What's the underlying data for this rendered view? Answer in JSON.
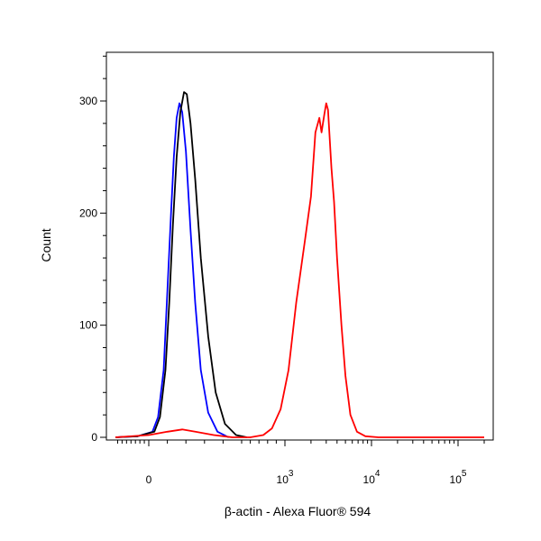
{
  "chart_data": {
    "type": "line",
    "xlabel": "β-actin - Alexa Fluor® 594",
    "ylabel": "Count",
    "x_scale": "biexponential",
    "ylim": [
      0,
      340
    ],
    "y_ticks": [
      {
        "value": 0,
        "label": "0"
      },
      {
        "value": 100,
        "label": "100"
      },
      {
        "value": 200,
        "label": "200"
      },
      {
        "value": 300,
        "label": "300"
      }
    ],
    "x_ticks": [
      {
        "value": 0,
        "base": "0",
        "exp": ""
      },
      {
        "value": 1000,
        "base": "10",
        "exp": "3"
      },
      {
        "value": 10000,
        "base": "10",
        "exp": "4"
      },
      {
        "value": 100000,
        "base": "10",
        "exp": "5"
      }
    ],
    "grid": false,
    "series": [
      {
        "color": "#0000ff",
        "points": [
          [
            -150,
            0
          ],
          [
            -50,
            1
          ],
          [
            20,
            5
          ],
          [
            50,
            18
          ],
          [
            80,
            60
          ],
          [
            100,
            130
          ],
          [
            120,
            200
          ],
          [
            135,
            250
          ],
          [
            150,
            285
          ],
          [
            165,
            298
          ],
          [
            180,
            290
          ],
          [
            200,
            255
          ],
          [
            225,
            185
          ],
          [
            250,
            120
          ],
          [
            280,
            60
          ],
          [
            320,
            22
          ],
          [
            370,
            5
          ],
          [
            430,
            0
          ]
        ]
      },
      {
        "color": "#000000",
        "points": [
          [
            -150,
            0
          ],
          [
            -50,
            1
          ],
          [
            30,
            5
          ],
          [
            60,
            18
          ],
          [
            90,
            60
          ],
          [
            110,
            120
          ],
          [
            130,
            190
          ],
          [
            150,
            250
          ],
          [
            170,
            290
          ],
          [
            190,
            308
          ],
          [
            205,
            306
          ],
          [
            225,
            280
          ],
          [
            250,
            230
          ],
          [
            280,
            160
          ],
          [
            320,
            90
          ],
          [
            360,
            40
          ],
          [
            410,
            12
          ],
          [
            470,
            2
          ],
          [
            560,
            0
          ]
        ]
      },
      {
        "color": "#ff0000",
        "points": [
          [
            -150,
            0
          ],
          [
            0,
            2
          ],
          [
            100,
            5
          ],
          [
            180,
            7
          ],
          [
            250,
            5
          ],
          [
            350,
            2
          ],
          [
            450,
            0
          ],
          [
            600,
            0
          ],
          [
            750,
            2
          ],
          [
            850,
            8
          ],
          [
            950,
            25
          ],
          [
            1100,
            60
          ],
          [
            1350,
            120
          ],
          [
            1700,
            175
          ],
          [
            2000,
            215
          ],
          [
            2250,
            272
          ],
          [
            2500,
            285
          ],
          [
            2650,
            272
          ],
          [
            2850,
            288
          ],
          [
            3000,
            298
          ],
          [
            3150,
            292
          ],
          [
            3450,
            240
          ],
          [
            3700,
            210
          ],
          [
            4000,
            160
          ],
          [
            4500,
            100
          ],
          [
            5000,
            55
          ],
          [
            5700,
            20
          ],
          [
            6800,
            5
          ],
          [
            8500,
            1
          ],
          [
            12000,
            0
          ],
          [
            20000,
            0
          ],
          [
            60000,
            0
          ],
          [
            200000,
            0
          ]
        ]
      }
    ]
  }
}
